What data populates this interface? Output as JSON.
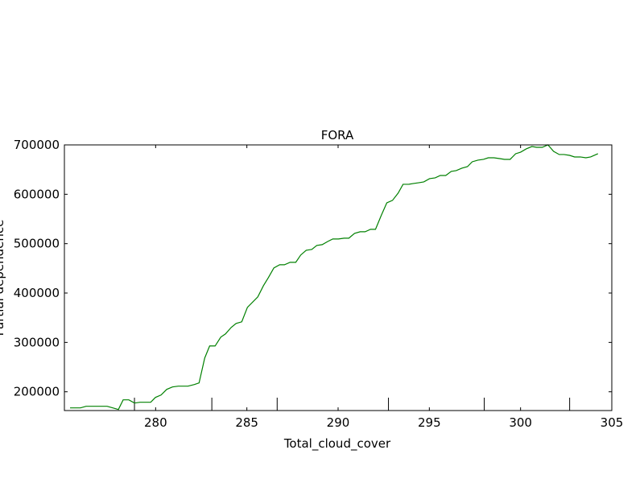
{
  "chart_data": {
    "type": "line",
    "title": "FORA",
    "x_label": "Total_cloud_cover",
    "y_label": "Partial dependence",
    "x": [
      275.31,
      275.88,
      276.19,
      276.77,
      277.34,
      277.65,
      277.96,
      278.22,
      278.53,
      278.84,
      279.15,
      279.73,
      279.99,
      280.3,
      280.61,
      280.92,
      281.24,
      281.77,
      282.12,
      282.38,
      282.69,
      282.96,
      283.26,
      283.57,
      283.83,
      284.14,
      284.41,
      284.72,
      285.03,
      285.6,
      285.91,
      286.18,
      286.48,
      286.8,
      287.06,
      287.37,
      287.68,
      287.95,
      288.25,
      288.56,
      288.83,
      289.13,
      289.44,
      289.71,
      290.02,
      290.33,
      290.59,
      290.9,
      291.21,
      291.48,
      291.78,
      292.05,
      292.36,
      292.67,
      292.98,
      293.29,
      293.56,
      293.87,
      294.13,
      294.44,
      294.7,
      295.01,
      295.32,
      295.6,
      295.9,
      296.2,
      296.47,
      296.78,
      297.09,
      297.35,
      297.66,
      297.97,
      298.23,
      298.54,
      298.85,
      299.12,
      299.43,
      299.73,
      300.0,
      300.31,
      300.62,
      300.88,
      301.19,
      301.5,
      301.81,
      302.12,
      302.38,
      302.69,
      302.96,
      303.27,
      303.58,
      303.84,
      304.24
    ],
    "series": [
      {
        "color": "#008000",
        "values": [
          167400,
          167400,
          170700,
          170700,
          170700,
          167400,
          164200,
          183700,
          183700,
          177200,
          178800,
          178800,
          188600,
          193500,
          204900,
          209800,
          211400,
          211400,
          214600,
          217900,
          268400,
          292800,
          292800,
          310700,
          317300,
          330300,
          338500,
          341700,
          371000,
          392200,
          415000,
          431300,
          450800,
          457300,
          457300,
          462200,
          462200,
          476900,
          486600,
          488300,
          496400,
          498000,
          504600,
          509500,
          509500,
          511100,
          511100,
          520800,
          524100,
          524100,
          529000,
          529000,
          556700,
          582700,
          587600,
          602300,
          620200,
          620200,
          621800,
          623500,
          625100,
          631600,
          633200,
          638100,
          638100,
          646300,
          647900,
          652800,
          656000,
          665800,
          669100,
          670700,
          673900,
          673900,
          672300,
          670700,
          670700,
          682100,
          685300,
          691900,
          696700,
          695100,
          695100,
          700000,
          687000,
          680500,
          680500,
          678800,
          675600,
          675600,
          673900,
          675600,
          682100
        ]
      }
    ],
    "deciles": [
      278.84,
      283.08,
      286.66,
      292.76,
      298.01,
      302.69
    ],
    "xlim": [
      275,
      305
    ],
    "xticks": [
      280,
      285,
      290,
      295,
      300,
      305
    ],
    "ylim": [
      162000,
      700000
    ],
    "yticks": [
      200000,
      300000,
      400000,
      500000,
      600000,
      700000
    ]
  }
}
